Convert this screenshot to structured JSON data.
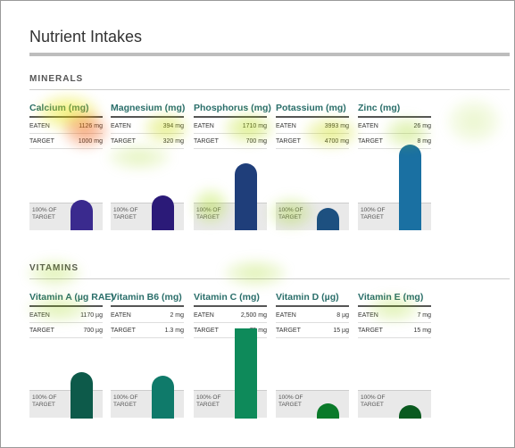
{
  "header": {
    "title": "Nutrient Intakes"
  },
  "labels": {
    "eaten": "EATEN",
    "target": "TARGET",
    "band": "100% OF TARGET"
  },
  "sections": [
    {
      "title": "MINERALS",
      "nutrients": [
        {
          "name": "Calcium (mg)",
          "eaten": "1126 mg",
          "target": "1000 mg"
        },
        {
          "name": "Magnesium (mg)",
          "eaten": "394 mg",
          "target": "320 mg"
        },
        {
          "name": "Phosphorus (mg)",
          "eaten": "1710 mg",
          "target": "700 mg"
        },
        {
          "name": "Potassium (mg)",
          "eaten": "3993 mg",
          "target": "4700 mg"
        },
        {
          "name": "Zinc (mg)",
          "eaten": "26 mg",
          "target": "8 mg"
        }
      ]
    },
    {
      "title": "VITAMINS",
      "nutrients": [
        {
          "name": "Vitamin A (µg RAE)",
          "eaten": "1170 µg",
          "target": "700 µg"
        },
        {
          "name": "Vitamin B6 (mg)",
          "eaten": "2 mg",
          "target": "1.3 mg"
        },
        {
          "name": "Vitamin C (mg)",
          "eaten": "2,500 mg",
          "target": "75 mg"
        },
        {
          "name": "Vitamin D (µg)",
          "eaten": "8 µg",
          "target": "15 µg"
        },
        {
          "name": "Vitamin E (mg)",
          "eaten": "7 mg",
          "target": "15 mg"
        }
      ]
    }
  ]
}
